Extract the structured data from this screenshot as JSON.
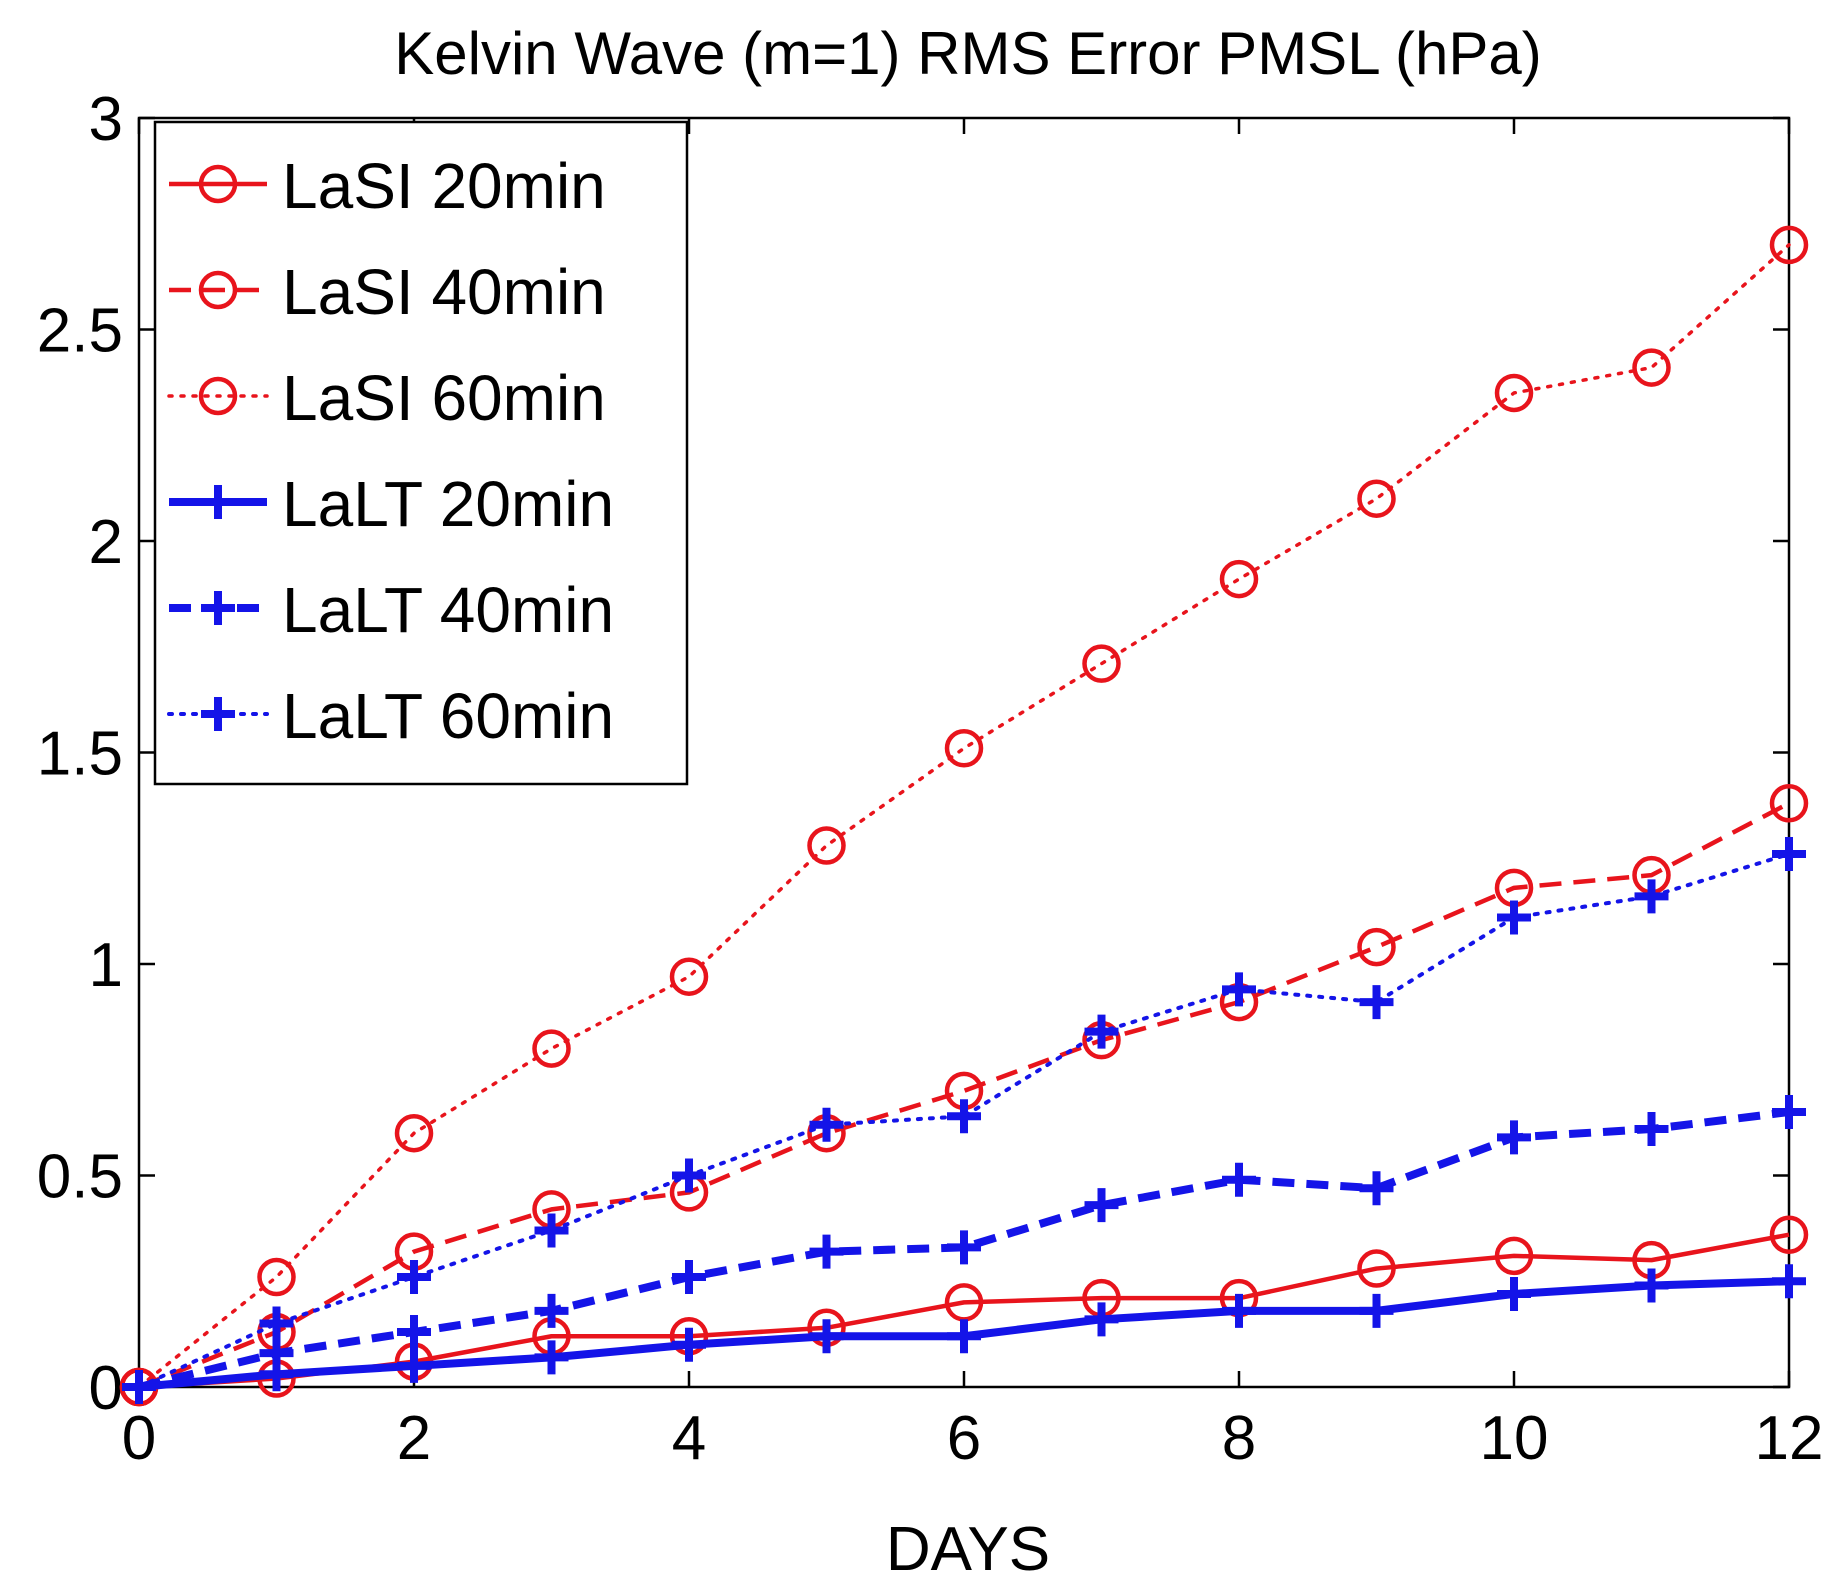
{
  "chart_data": {
    "type": "line",
    "title": "Kelvin Wave (m=1) RMS Error PMSL (hPa)",
    "xlabel": "DAYS",
    "ylabel": "",
    "xlim": [
      0,
      12
    ],
    "ylim": [
      0,
      3
    ],
    "xticks": [
      "0",
      "2",
      "4",
      "6",
      "8",
      "10",
      "12"
    ],
    "yticks": [
      "0",
      "0.5",
      "1",
      "1.5",
      "2",
      "2.5",
      "3"
    ],
    "grid": false,
    "legend_position": "top-left",
    "x": [
      0,
      1,
      2,
      3,
      4,
      5,
      6,
      7,
      8,
      9,
      10,
      11,
      12
    ],
    "series": [
      {
        "name": "LaSI 20min",
        "color": "#e8141c",
        "line": "solid",
        "marker": "circle",
        "values": [
          0,
          0.02,
          0.06,
          0.12,
          0.12,
          0.14,
          0.2,
          0.21,
          0.21,
          0.28,
          0.31,
          0.3,
          0.36
        ]
      },
      {
        "name": "LaSI 40min",
        "color": "#e8141c",
        "line": "dashed",
        "marker": "circle",
        "values": [
          0,
          0.13,
          0.32,
          0.42,
          0.46,
          0.6,
          0.7,
          0.82,
          0.91,
          1.04,
          1.18,
          1.21,
          1.38
        ]
      },
      {
        "name": "LaSI 60min",
        "color": "#e8141c",
        "line": "dotted",
        "marker": "circle",
        "values": [
          0,
          0.26,
          0.6,
          0.8,
          0.97,
          1.28,
          1.51,
          1.71,
          1.91,
          2.1,
          2.35,
          2.41,
          2.7
        ]
      },
      {
        "name": "LaLT 20min",
        "color": "#1414e8",
        "line": "solid",
        "marker": "plus",
        "values": [
          0,
          0.03,
          0.05,
          0.07,
          0.1,
          0.12,
          0.12,
          0.16,
          0.18,
          0.18,
          0.22,
          0.24,
          0.25
        ]
      },
      {
        "name": "LaLT 40min",
        "color": "#1414e8",
        "line": "dashed",
        "marker": "plus",
        "values": [
          0,
          0.08,
          0.13,
          0.18,
          0.26,
          0.32,
          0.33,
          0.43,
          0.49,
          0.47,
          0.59,
          0.61,
          0.65
        ]
      },
      {
        "name": "LaLT 60min",
        "color": "#1414e8",
        "line": "dotted",
        "marker": "plus",
        "values": [
          0,
          0.15,
          0.26,
          0.37,
          0.5,
          0.62,
          0.64,
          0.84,
          0.94,
          0.91,
          1.11,
          1.16,
          1.26
        ]
      }
    ]
  }
}
